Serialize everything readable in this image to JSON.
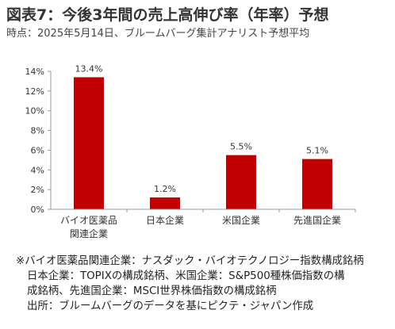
{
  "title": "図表7：今後3年間の売上高伸び率（年率）予想",
  "subtitle": "時点：2025年5月14日、ブルームバーグ集計アナリスト予想平均",
  "chart_data": {
    "type": "bar",
    "categories": [
      [
        "バイオ医薬品",
        "関連企業"
      ],
      [
        "日本企業"
      ],
      [
        "米国企業"
      ],
      [
        "先進国企業"
      ]
    ],
    "values": [
      13.4,
      1.2,
      5.5,
      5.1
    ],
    "data_labels": [
      "13.4%",
      "1.2%",
      "5.5%",
      "5.1%"
    ],
    "y_ticks": [
      "0%",
      "2%",
      "4%",
      "6%",
      "8%",
      "10%",
      "12%",
      "14%"
    ],
    "ylim": [
      0,
      14
    ],
    "bar_color": "#C00000",
    "grid": false,
    "legend": "none"
  },
  "notes": [
    "※バイオ医薬品関連企業：ナスダック・バイオテクノロジー指数構成銘柄",
    "日本企業：TOPIXの構成銘柄、米国企業：S&P500種株価指数の構",
    "成銘柄、先進国企業：MSCI世界株価指数の構成銘柄",
    "出所：ブルームバーグのデータを基にピクテ・ジャパン作成"
  ]
}
